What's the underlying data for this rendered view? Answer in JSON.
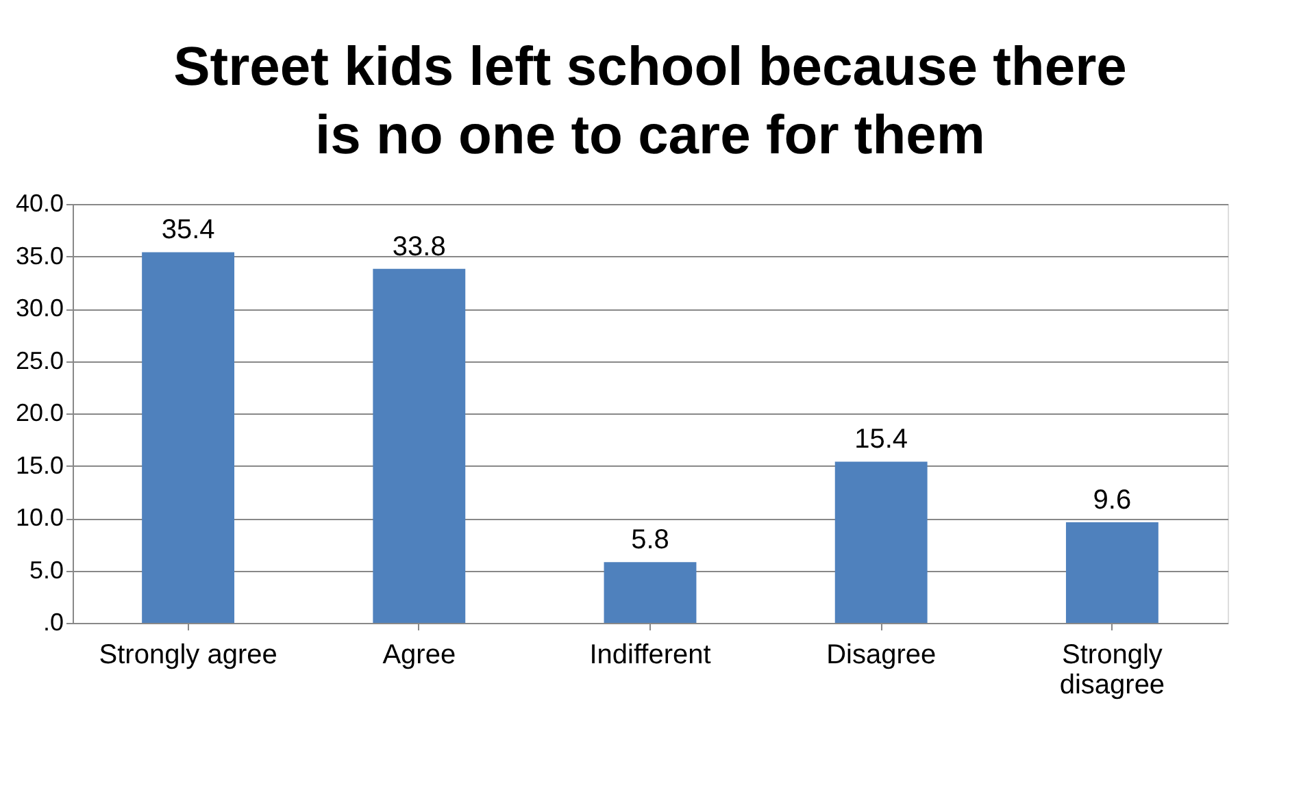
{
  "chart_data": {
    "type": "bar",
    "title": "Street kids left school because there is no one to care for them",
    "categories": [
      "Strongly agree",
      "Agree",
      "Indifferent",
      "Disagree",
      "Strongly disagree"
    ],
    "values": [
      35.4,
      33.8,
      5.8,
      15.4,
      9.6
    ],
    "color": "#4f81bd",
    "ylim": [
      0,
      40
    ],
    "yticks": [
      {
        "value": 0,
        "label": ".0"
      },
      {
        "value": 5,
        "label": "5.0"
      },
      {
        "value": 10,
        "label": "10.0"
      },
      {
        "value": 15,
        "label": "15.0"
      },
      {
        "value": 20,
        "label": "20.0"
      },
      {
        "value": 25,
        "label": "25.0"
      },
      {
        "value": 30,
        "label": "30.0"
      },
      {
        "value": 35,
        "label": "35.0"
      },
      {
        "value": 40,
        "label": "40.0"
      }
    ],
    "grid": "y",
    "data_labels": true
  }
}
